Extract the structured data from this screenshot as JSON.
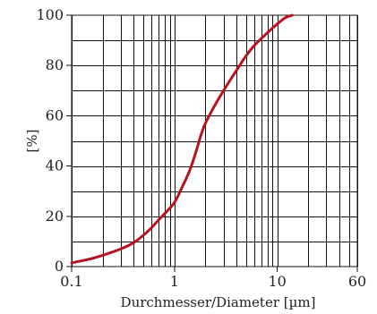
{
  "chart_data": {
    "type": "line",
    "title": "",
    "xlabel": "Durchmesser/Diameter  [µm]",
    "ylabel": "[%]",
    "x_scale": "log",
    "xlim": [
      0.1,
      60
    ],
    "ylim": [
      0,
      100
    ],
    "grid": true,
    "x_ticks": [
      {
        "value": 0.1,
        "label": "0.1"
      },
      {
        "value": 1,
        "label": "1"
      },
      {
        "value": 10,
        "label": "10"
      },
      {
        "value": 60,
        "label": "60"
      }
    ],
    "y_ticks": [
      {
        "value": 0,
        "label": "0"
      },
      {
        "value": 20,
        "label": "20"
      },
      {
        "value": 40,
        "label": "40"
      },
      {
        "value": 60,
        "label": "60"
      },
      {
        "value": 80,
        "label": "80"
      },
      {
        "value": 100,
        "label": "100"
      }
    ],
    "x_minor_grid": [
      0.2,
      0.3,
      0.4,
      0.5,
      0.6,
      0.7,
      0.8,
      0.9,
      2,
      3,
      4,
      5,
      6,
      7,
      8,
      9,
      20,
      30,
      40,
      50
    ],
    "y_grid": [
      10,
      20,
      30,
      40,
      50,
      60,
      70,
      80,
      90
    ],
    "series": [
      {
        "color": "#b5141f",
        "points": [
          [
            0.1,
            1.5
          ],
          [
            0.15,
            3.0
          ],
          [
            0.2,
            4.5
          ],
          [
            0.3,
            7.0
          ],
          [
            0.4,
            9.5
          ],
          [
            0.5,
            12.5
          ],
          [
            0.6,
            15.5
          ],
          [
            0.7,
            18.5
          ],
          [
            0.8,
            21.0
          ],
          [
            1.0,
            25.5
          ],
          [
            1.2,
            32.0
          ],
          [
            1.4,
            38.0
          ],
          [
            1.6,
            45.0
          ],
          [
            1.8,
            52.0
          ],
          [
            2.0,
            57.0
          ],
          [
            2.5,
            64.5
          ],
          [
            3.0,
            70.0
          ],
          [
            4.0,
            78.0
          ],
          [
            5.0,
            84.0
          ],
          [
            6.0,
            88.0
          ],
          [
            8.0,
            93.0
          ],
          [
            10.0,
            96.5
          ],
          [
            12.0,
            99.0
          ],
          [
            14.0,
            100.0
          ]
        ]
      }
    ]
  }
}
